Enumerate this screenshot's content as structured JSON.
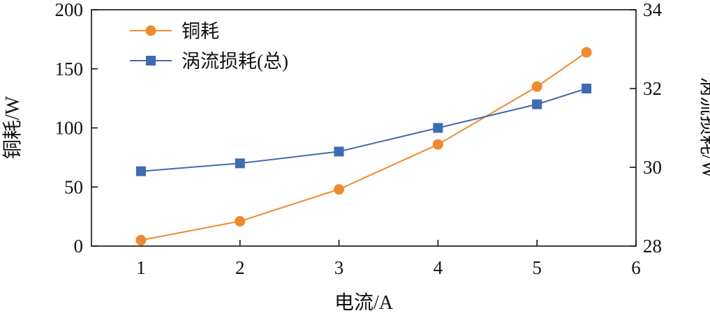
{
  "chart_data": {
    "type": "line",
    "x_label": "电流/A",
    "y_left_label": "铜耗/W",
    "y_right_label": "涡流损耗/W",
    "x_range": [
      0.5,
      6
    ],
    "x_ticks": [
      1,
      2,
      3,
      4,
      5,
      6
    ],
    "y_left_range": [
      0,
      200
    ],
    "y_left_ticks": [
      0,
      50,
      100,
      150,
      200
    ],
    "y_right_range": [
      28,
      34
    ],
    "y_right_ticks": [
      28,
      30,
      32,
      34
    ],
    "grid": false,
    "legend_position": "top-left",
    "series": [
      {
        "name": "铜耗",
        "axis": "left",
        "marker": "circle",
        "color": "#EE8A2E",
        "points": [
          [
            1,
            5
          ],
          [
            2,
            21
          ],
          [
            3,
            48
          ],
          [
            4,
            86
          ],
          [
            5,
            135
          ],
          [
            5.5,
            164
          ]
        ]
      },
      {
        "name": "涡流损耗(总)",
        "axis": "right",
        "marker": "square",
        "color": "#3F6BAF",
        "points": [
          [
            1,
            29.9
          ],
          [
            2,
            30.1
          ],
          [
            3,
            30.4
          ],
          [
            4,
            31.0
          ],
          [
            5,
            31.6
          ],
          [
            5.5,
            32.0
          ]
        ]
      }
    ]
  }
}
